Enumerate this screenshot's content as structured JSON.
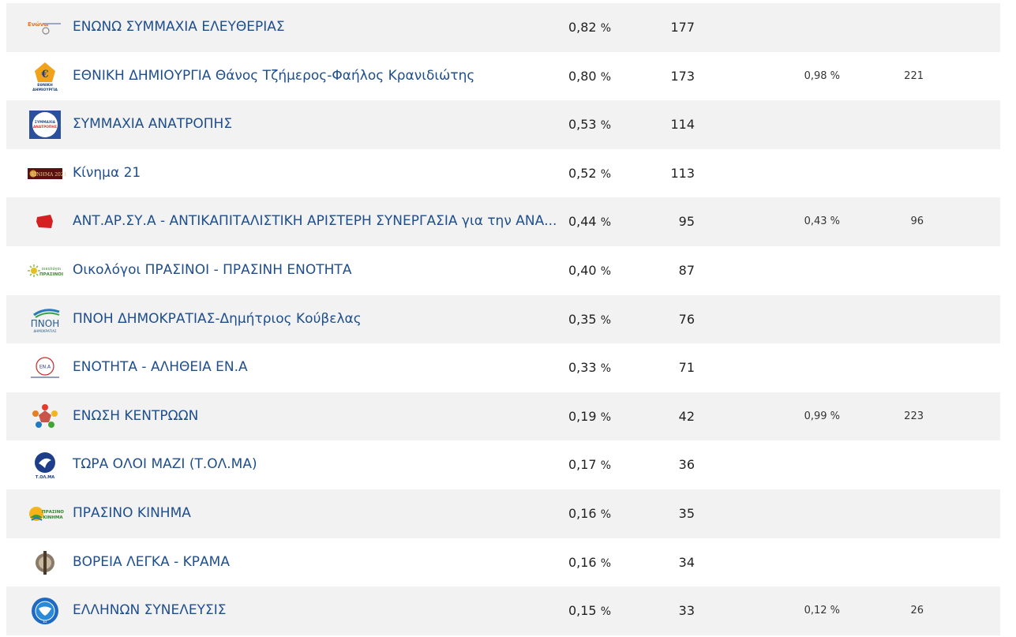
{
  "rows": [
    {
      "name": "ΕΝΩΝΩ ΣΥΜΜΑΧΙΑ ΕΛΕΥΘΕΡΙΑΣ",
      "pct": "0,82",
      "votes": "177",
      "pct2": "",
      "votes2": "",
      "logo": "enono-logo",
      "logo_text": "Ενώνω"
    },
    {
      "name": "ΕΘΝΙΚΗ ΔΗΜΙΟΥΡΓΙΑ Θάνος Τζήμερος-Φαήλος Κρανιδιώτης",
      "pct": "0,80",
      "votes": "173",
      "pct2": "0,98 %",
      "votes2": "221",
      "logo": "ethniki-dimiourgia-logo",
      "logo_text": "ΕΘΝΙΚΗ ΔΗΜΙΟΥΡΓΙΑ"
    },
    {
      "name": "ΣΥΜΜΑΧΙΑ ΑΝΑΤΡΟΠΗΣ",
      "pct": "0,53",
      "votes": "114",
      "pct2": "",
      "votes2": "",
      "logo": "symmaxia-logo",
      "logo_text": "ΣΥΜΜΑΧΙΑ ΑΝΑΤΡΟΠΗΣ"
    },
    {
      "name": "Κίνημα 21",
      "pct": "0,52",
      "votes": "113",
      "pct2": "",
      "votes2": "",
      "logo": "kinima21-logo",
      "logo_text": "ΚΙΝΗΜΑ 2021"
    },
    {
      "name": "ΑΝΤ.ΑΡ.ΣΥ.Α - ΑΝΤΙΚΑΠΙΤΑΛΙΣΤΙΚΗ ΑΡΙΣΤΕΡΗ ΣΥΝΕΡΓΑΣΙΑ για την ΑΝΑ...",
      "pct": "0,44",
      "votes": "95",
      "pct2": "0,43 %",
      "votes2": "96",
      "logo": "antarsya-logo",
      "logo_text": ""
    },
    {
      "name": "Οικολόγοι ΠΡΑΣΙΝΟΙ - ΠΡΑΣΙΝΗ ΕΝΟΤΗΤΑ",
      "pct": "0,40",
      "votes": "87",
      "pct2": "",
      "votes2": "",
      "logo": "oikologoi-logo",
      "logo_text": "οικολόγοι ΠΡΑΣΙΝΟΙ"
    },
    {
      "name": "ΠΝΟΗ ΔΗΜΟΚΡΑΤΙΑΣ-Δημήτριος Κούβελας",
      "pct": "0,35",
      "votes": "76",
      "pct2": "",
      "votes2": "",
      "logo": "pnoi-logo",
      "logo_text": "ΠΝΟΗ"
    },
    {
      "name": "ΕΝΟΤΗΤΑ - ΑΛΗΘΕΙΑ ΕΝ.Α",
      "pct": "0,33",
      "votes": "71",
      "pct2": "",
      "votes2": "",
      "logo": "ena-logo",
      "logo_text": "ΕΝ.Α"
    },
    {
      "name": "ΕΝΩΣΗ ΚΕΝΤΡΩΩΝ",
      "pct": "0,19",
      "votes": "42",
      "pct2": "0,99 %",
      "votes2": "223",
      "logo": "enosi-kentroon-logo",
      "logo_text": ""
    },
    {
      "name": "ΤΩΡΑ ΟΛΟΙ ΜΑΖΙ (Τ.ΟΛ.ΜΑ)",
      "pct": "0,17",
      "votes": "36",
      "pct2": "",
      "votes2": "",
      "logo": "tolma-logo",
      "logo_text": "Τ.ΟΛ.ΜΑ"
    },
    {
      "name": "ΠΡΑΣΙΝΟ ΚΙΝΗΜΑ",
      "pct": "0,16",
      "votes": "35",
      "pct2": "",
      "votes2": "",
      "logo": "prasino-kinima-logo",
      "logo_text": "ΠΡΑΣΙΝΟ ΚΙΝΗΜΑ"
    },
    {
      "name": "ΒΟΡΕΙΑ ΛΕΓΚΑ - ΚΡΑΜΑ",
      "pct": "0,16",
      "votes": "34",
      "pct2": "",
      "votes2": "",
      "logo": "voreia-legka-logo",
      "logo_text": ""
    },
    {
      "name": "ΕΛΛΗΝΩΝ ΣΥΝΕΛΕΥΣΙΣ",
      "pct": "0,15",
      "votes": "33",
      "pct2": "0,12 %",
      "votes2": "26",
      "logo": "ellinon-syneleysis-logo",
      "logo_text": "ΕΣ"
    }
  ],
  "unit": "%"
}
